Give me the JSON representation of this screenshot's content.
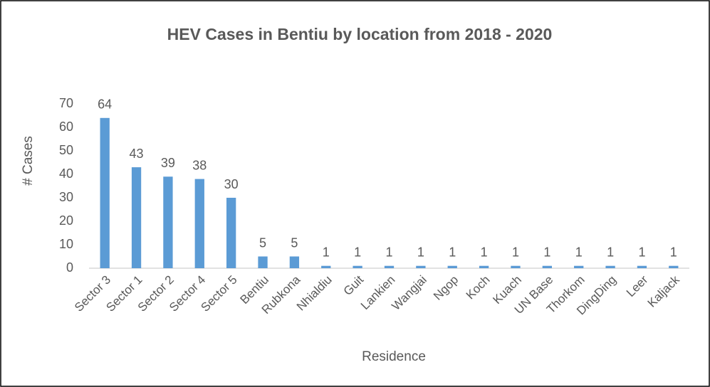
{
  "chart_data": {
    "type": "bar",
    "title": "HEV Cases in Bentiu by location from 2018  - 2020",
    "x_label": "Residence",
    "y_label": "# Cases",
    "categories": [
      "Sector 3",
      "Sector 1",
      "Sector 2",
      "Sector 4",
      "Sector 5",
      "Bentiu",
      "Rubkona",
      "Nhialdiu",
      "Guit",
      "Lankien",
      "Wangjai",
      "Ngop",
      "Koch",
      "Kuach",
      "UN Base",
      "Thorkom",
      "DingDing",
      "Leer",
      "Kaljack"
    ],
    "values": [
      64,
      43,
      39,
      38,
      30,
      5,
      5,
      1,
      1,
      1,
      1,
      1,
      1,
      1,
      1,
      1,
      1,
      1,
      1
    ],
    "color": "#5b9bd5",
    "ylim": [
      0,
      70
    ],
    "yticks": [
      0,
      10,
      20,
      30,
      40,
      50,
      60,
      70
    ],
    "grid": false
  }
}
